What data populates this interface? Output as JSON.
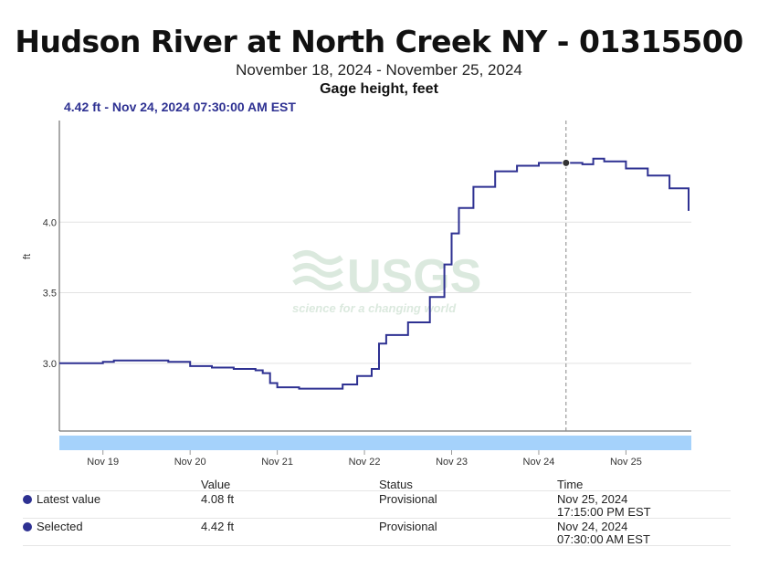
{
  "title": "Hudson River at North Creek NY - 01315500",
  "date_range": "November 18, 2024 - November 25, 2024",
  "parameter": "Gage height, feet",
  "readout": "4.42 ft - Nov 24, 2024 07:30:00 AM EST",
  "watermark": {
    "brand": "USGS",
    "tagline": "science for a changing world"
  },
  "colors": {
    "line": "#2e3192",
    "marker": "#333333",
    "nav_bar": "#a5d2fb",
    "cursor": "#888888"
  },
  "chart_data": {
    "type": "line",
    "ylabel": "ft",
    "xlabel": "",
    "x_ticks": [
      "Nov 19",
      "Nov 20",
      "Nov 21",
      "Nov 22",
      "Nov 23",
      "Nov 24",
      "Nov 25"
    ],
    "y_ticks": [
      "3.0",
      "3.5",
      "4.0"
    ],
    "x_range": [
      "Nov 18 12:00",
      "Nov 25 18:00"
    ],
    "ylim": [
      2.52,
      4.72
    ],
    "grid": "horizontal",
    "series": [
      {
        "values": [
          [
            "Nov 18 12:00",
            3.0
          ],
          [
            "Nov 18 18:00",
            3.0
          ],
          [
            "Nov 19 00:00",
            3.01
          ],
          [
            "Nov 19 03:00",
            3.02
          ],
          [
            "Nov 19 12:00",
            3.02
          ],
          [
            "Nov 19 18:00",
            3.01
          ],
          [
            "Nov 20 00:00",
            2.98
          ],
          [
            "Nov 20 06:00",
            2.97
          ],
          [
            "Nov 20 12:00",
            2.96
          ],
          [
            "Nov 20 18:00",
            2.95
          ],
          [
            "Nov 20 20:00",
            2.93
          ],
          [
            "Nov 20 22:00",
            2.86
          ],
          [
            "Nov 21 00:00",
            2.83
          ],
          [
            "Nov 21 06:00",
            2.82
          ],
          [
            "Nov 21 12:00",
            2.82
          ],
          [
            "Nov 21 18:00",
            2.85
          ],
          [
            "Nov 21 22:00",
            2.91
          ],
          [
            "Nov 22 02:00",
            2.96
          ],
          [
            "Nov 22 04:00",
            3.14
          ],
          [
            "Nov 22 06:00",
            3.2
          ],
          [
            "Nov 22 12:00",
            3.29
          ],
          [
            "Nov 22 18:00",
            3.47
          ],
          [
            "Nov 22 22:00",
            3.7
          ],
          [
            "Nov 23 00:00",
            3.92
          ],
          [
            "Nov 23 02:00",
            4.1
          ],
          [
            "Nov 23 06:00",
            4.25
          ],
          [
            "Nov 23 12:00",
            4.36
          ],
          [
            "Nov 23 18:00",
            4.4
          ],
          [
            "Nov 24 00:00",
            4.42
          ],
          [
            "Nov 24 07:30",
            4.42
          ],
          [
            "Nov 24 12:00",
            4.41
          ],
          [
            "Nov 24 15:00",
            4.45
          ],
          [
            "Nov 24 18:00",
            4.43
          ],
          [
            "Nov 25 00:00",
            4.38
          ],
          [
            "Nov 25 06:00",
            4.33
          ],
          [
            "Nov 25 12:00",
            4.24
          ],
          [
            "Nov 25 17:15",
            4.08
          ]
        ]
      }
    ],
    "selected_point": [
      "Nov 24 07:30",
      4.42
    ]
  },
  "table": {
    "headers": {
      "value": "Value",
      "status": "Status",
      "time": "Time"
    },
    "rows": [
      {
        "label": "Latest value",
        "value": "4.08 ft",
        "status": "Provisional",
        "time_date": "Nov 25, 2024",
        "time_clock": "17:15:00 PM EST"
      },
      {
        "label": "Selected",
        "value": "4.42 ft",
        "status": "Provisional",
        "time_date": "Nov 24, 2024",
        "time_clock": "07:30:00 AM EST"
      }
    ]
  }
}
